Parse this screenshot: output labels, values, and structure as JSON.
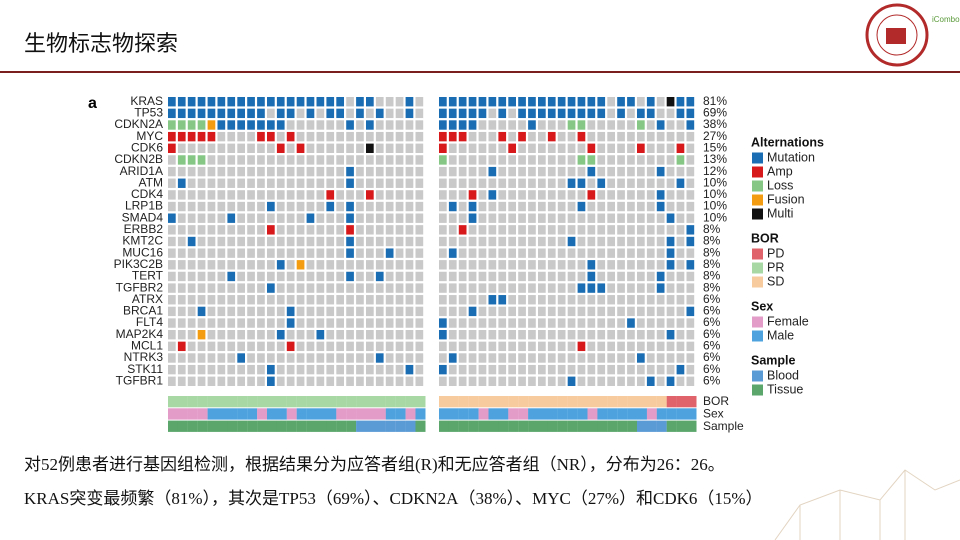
{
  "header": {
    "title": "生物标志物探索",
    "logo_text": "iCombo"
  },
  "chart_data": {
    "type": "oncoprint",
    "panel_label": "a",
    "genes": [
      "KRAS",
      "TP53",
      "CDKN2A",
      "MYC",
      "CDK6",
      "CDKN2B",
      "ARID1A",
      "ATM",
      "CDK4",
      "LRP1B",
      "SMAD4",
      "ERBB2",
      "KMT2C",
      "MUC16",
      "PIK3C2B",
      "TERT",
      "TGFBR2",
      "ATRX",
      "BRCA1",
      "FLT4",
      "MAP2K4",
      "MCL1",
      "NTRK3",
      "STK11",
      "TGFBR1"
    ],
    "frequency_labels": [
      "81%",
      "69%",
      "38%",
      "27%",
      "15%",
      "13%",
      "12%",
      "10%",
      "10%",
      "10%",
      "10%",
      "8%",
      "8%",
      "8%",
      "8%",
      "8%",
      "8%",
      "6%",
      "6%",
      "6%",
      "6%",
      "6%",
      "6%",
      "6%",
      "6%"
    ],
    "groups": [
      {
        "rows": [
          "MMMMMMMMMMMMMMMMMM.MM...M.",
          "MMMMMMMMMM.MM.M.MM.M.M..M.",
          "LLLLFMMMMMMM......M.M.....",
          "AAAAA....AA.A.............",
          "A..........A.A......X.....",
          ".LLL......................",
          "..................M.......",
          ".M................M.......",
          "................A...A.....",
          "..........M.....M.M.......",
          "M.....M.......M...M.......",
          "..........A.......A.......",
          "..M...............M.......",
          "..................M...M...",
          "...........M.F............",
          "......M...........M..M....",
          "..........M...............",
          "..........................",
          "...M........M.............",
          "............M.............",
          "...F.......M...M..........",
          ".A..........A.............",
          ".......M.............M....",
          "..........M.............M.",
          "..........M..............."
        ],
        "BOR": "PPPPPPPPPPPPPPPPPPPPPPPPPP",
        "Sex": "FFFFMMMMMFMMFMMMMFFFFFMMFM",
        "Sample": "TTTTTTTTTTTTTTTTTTTBBBBBBT"
      },
      {
        "rows": [
          "MMMMMMMMMMMMMMMMM.MM.M.XMM",
          "MMMMM.M.MMMMMMMMM.M.MM..MM",
          "MMMM.....M...LL.....L.M..M",
          "AAA...A.A..A..A...........",
          "A......A.......A....A...A.",
          "L.............LL........L.",
          ".....M.........M......M...",
          ".............MM.M.......M.",
          "...A.M.........A......M...",
          ".M.M..........M.......M...",
          "...M...................M..",
          "..A......................M",
          ".............M.........M.M",
          ".M.....................M..",
          "...............M.......M.M",
          "...............M......M...",
          "..............MMM.....M...",
          ".....MM...................",
          "...M.....................M",
          "M..................M......",
          "M......................M..",
          "..............A...........",
          ".M..................M.....",
          "M.......................M.",
          ".............M.......M.M.."
        ],
        "BOR": "SSSSSSSSSSSSSSSSSSSSSSSDDD",
        "Sex": "MMMMFMMFFMMMMMMFMMMMMFMMMM",
        "Sample": "TTTTTTTTTTTTTTTTTTTTBBBTTT"
      }
    ],
    "annotation_rows": [
      "BOR",
      "Sex",
      "Sample"
    ],
    "empty_color": "#c9c9c9",
    "legend": [
      {
        "title": "Alternations",
        "items": [
          {
            "code": "M",
            "label": "Mutation",
            "color": "#1a6db3"
          },
          {
            "code": "A",
            "label": "Amp",
            "color": "#d7191c"
          },
          {
            "code": "L",
            "label": "Loss",
            "color": "#86c786"
          },
          {
            "code": "F",
            "label": "Fusion",
            "color": "#f39c12"
          },
          {
            "code": "X",
            "label": "Multi",
            "color": "#111111"
          }
        ]
      },
      {
        "title": "BOR",
        "items": [
          {
            "code": "D",
            "label": "PD",
            "color": "#e0636b"
          },
          {
            "code": "P",
            "label": "PR",
            "color": "#a8d8a4"
          },
          {
            "code": "S",
            "label": "SD",
            "color": "#f8cb9e"
          }
        ]
      },
      {
        "title": "Sex",
        "items": [
          {
            "code": "F",
            "label": "Female",
            "color": "#e39bc7"
          },
          {
            "code": "M",
            "label": "Male",
            "color": "#4ea3df"
          }
        ]
      },
      {
        "title": "Sample",
        "items": [
          {
            "code": "B",
            "label": "Blood",
            "color": "#5b9bd5"
          },
          {
            "code": "T",
            "label": "Tissue",
            "color": "#5aa66b"
          }
        ]
      }
    ]
  },
  "body": {
    "lines": [
      "对52例患者进行基因组检测，根据结果分为应答者组(R)和无应答者组（NR），分布为26：26。",
      "KRAS突变最频繁（81%），其次是TP53（69%）、CDKN2A（38%）、MYC（27%）和CDK6（15%）"
    ]
  }
}
